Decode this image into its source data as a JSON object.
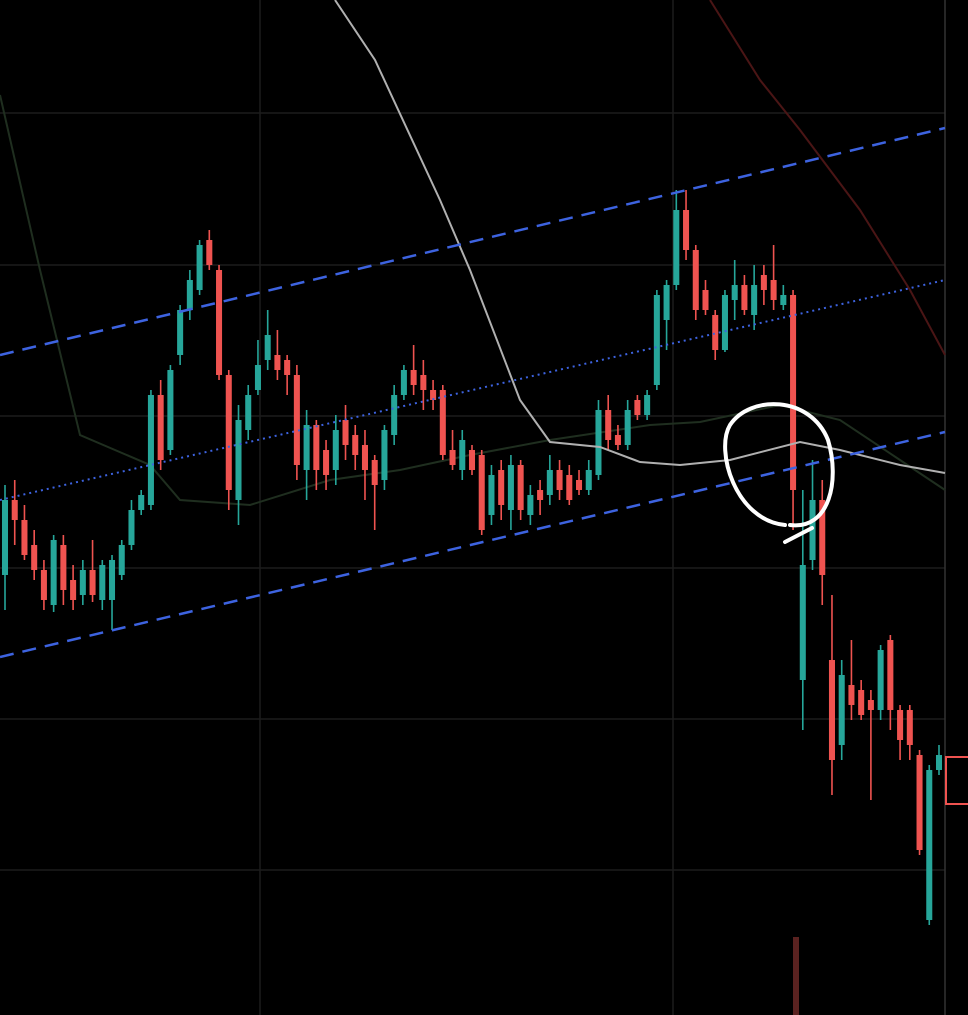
{
  "chart_data": {
    "type": "candlestick",
    "up_color": "#26a69a",
    "down_color": "#ef5350",
    "ylim": [
      0,
      101.5
    ],
    "open": [
      44,
      51.5,
      49.5,
      47,
      44.5,
      41,
      47,
      43.5,
      42,
      44.5,
      41.5,
      41.5,
      44,
      47,
      50.5,
      51,
      62,
      56.5,
      66,
      70.5,
      72.5,
      77.5,
      74.5,
      64,
      51.5,
      58.5,
      62.5,
      65.5,
      66,
      65.5,
      64,
      54.5,
      59,
      56.5,
      54.5,
      59.5,
      58,
      57,
      55.5,
      53.5,
      58,
      62,
      64.5,
      64,
      62.5,
      62.5,
      56.5,
      54.5,
      56.5,
      56,
      50,
      54.5,
      50.5,
      55,
      50,
      52.5,
      52,
      54.5,
      54,
      53.5,
      52.5,
      54,
      60.5,
      58,
      57,
      61.5,
      60,
      63,
      69.5,
      73,
      80.5,
      76.5,
      72.5,
      70,
      66.5,
      71.5,
      73,
      70,
      74,
      73.5,
      71,
      72,
      33.5,
      45.5,
      51.5,
      35.5,
      27,
      33,
      32.5,
      31.5,
      30.5,
      37.5,
      30.5,
      30.5,
      26,
      9.5,
      24.5
    ],
    "high": [
      53,
      53.5,
      51,
      48.5,
      45.5,
      48,
      48,
      45,
      45.5,
      47.5,
      45.5,
      46,
      47.5,
      51.5,
      52.5,
      62.5,
      63.5,
      65,
      71,
      74.5,
      77.5,
      78.5,
      75,
      64.5,
      61,
      63,
      67.5,
      70.5,
      68.5,
      66,
      65,
      60.5,
      59.5,
      57.5,
      60,
      61,
      59,
      58.5,
      56,
      59,
      63,
      65,
      67,
      65.5,
      63.5,
      63,
      58.5,
      58.5,
      57,
      56.5,
      55,
      55.5,
      56,
      55.5,
      53,
      53.5,
      56,
      55.5,
      55,
      54.5,
      55.5,
      61.5,
      62,
      59,
      61.5,
      62,
      62.5,
      72.5,
      73.5,
      82.5,
      82.5,
      77,
      73.5,
      70.5,
      72.5,
      75.5,
      74,
      75,
      75,
      77,
      73,
      72.5,
      52.5,
      55.5,
      53.5,
      42,
      35.5,
      37.5,
      33.5,
      32.5,
      37,
      38,
      31,
      31,
      26.5,
      25,
      27
    ],
    "low": [
      40.5,
      47,
      45.5,
      43.5,
      40.5,
      40.3,
      41,
      40.5,
      41,
      41.3,
      40.5,
      38.5,
      43.5,
      46.5,
      50,
      50.5,
      54.5,
      56,
      65,
      69.5,
      72,
      74.5,
      63.5,
      50.5,
      49,
      57.5,
      62,
      64.5,
      63.5,
      62,
      53.5,
      51.5,
      52.5,
      52.5,
      53,
      55.5,
      54.5,
      51.5,
      48.5,
      52.5,
      57,
      61.5,
      62,
      60.5,
      60.5,
      55.5,
      54.5,
      53.5,
      54,
      48,
      49,
      49.5,
      48.5,
      49.5,
      49,
      50,
      51,
      51.5,
      51,
      52,
      52,
      53.5,
      56.5,
      56.5,
      56.5,
      59.5,
      59.5,
      62.5,
      66.5,
      72.5,
      75.5,
      69.5,
      70,
      65.5,
      66.3,
      69.5,
      70,
      68.5,
      71,
      70.5,
      70.5,
      48.5,
      28.5,
      44.5,
      41,
      22,
      25.5,
      29.5,
      29.5,
      21.5,
      29.5,
      28.5,
      25.5,
      25.5,
      16,
      9,
      24
    ],
    "close": [
      51.5,
      49.5,
      46,
      44.5,
      41.5,
      47.5,
      42.5,
      41.5,
      44.5,
      42,
      45,
      45.5,
      47,
      50.5,
      52,
      62,
      55.5,
      64.5,
      70.5,
      73.5,
      77,
      75,
      64,
      52.5,
      59.5,
      62,
      65,
      68,
      64.5,
      64,
      55,
      59,
      54.5,
      54,
      58.5,
      57,
      56,
      54.5,
      53,
      58.5,
      62,
      64.5,
      63,
      62.5,
      61.5,
      56,
      55,
      57.5,
      54.5,
      48.5,
      54,
      51,
      55,
      50.5,
      52,
      51.5,
      54.5,
      52.5,
      51.5,
      52.5,
      54.5,
      60.5,
      57.5,
      57,
      60.5,
      60,
      62,
      72,
      73,
      80.5,
      76.5,
      70.5,
      70.5,
      66.5,
      72,
      73,
      70.5,
      73,
      72.5,
      71.5,
      72,
      52.5,
      45,
      51.5,
      44,
      25.5,
      34,
      31,
      30,
      30.5,
      36.5,
      30.5,
      27.5,
      27,
      16.5,
      24.5,
      26
    ]
  }
}
